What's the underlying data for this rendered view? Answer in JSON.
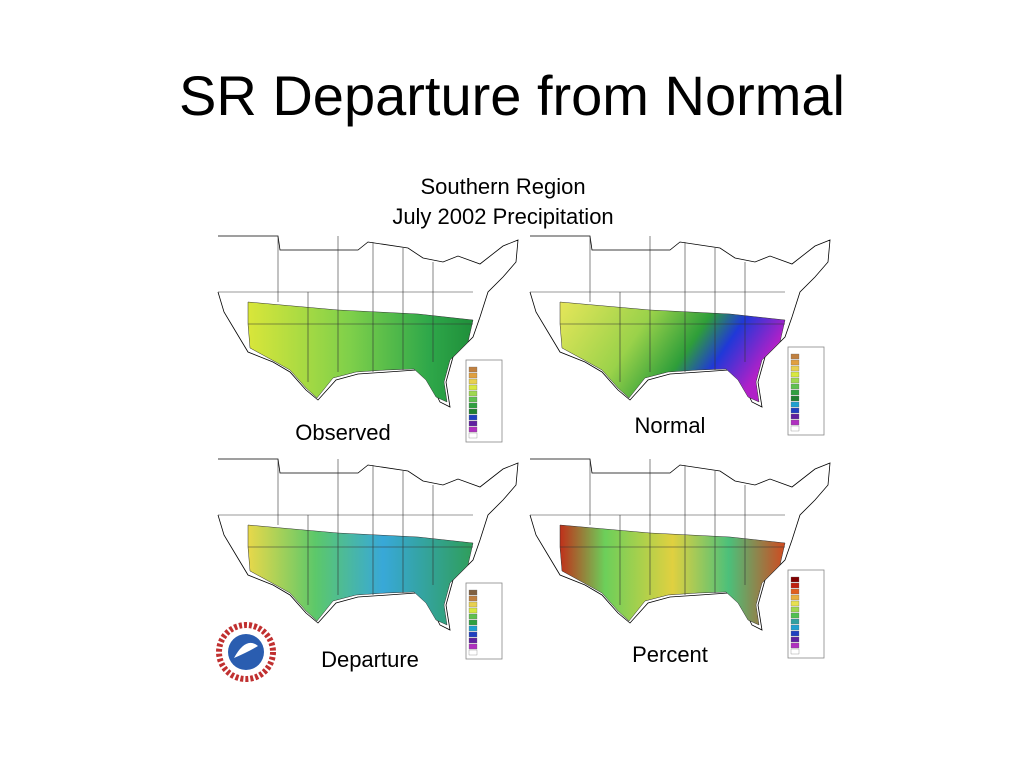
{
  "title": "SR Departure from Normal",
  "figure": {
    "title_lines": [
      "Southern Region",
      "July 2002 Precipitation"
    ],
    "panels": [
      {
        "label": "Observed"
      },
      {
        "label": "Normal"
      },
      {
        "label": "Departure"
      },
      {
        "label": "Percent"
      }
    ]
  }
}
